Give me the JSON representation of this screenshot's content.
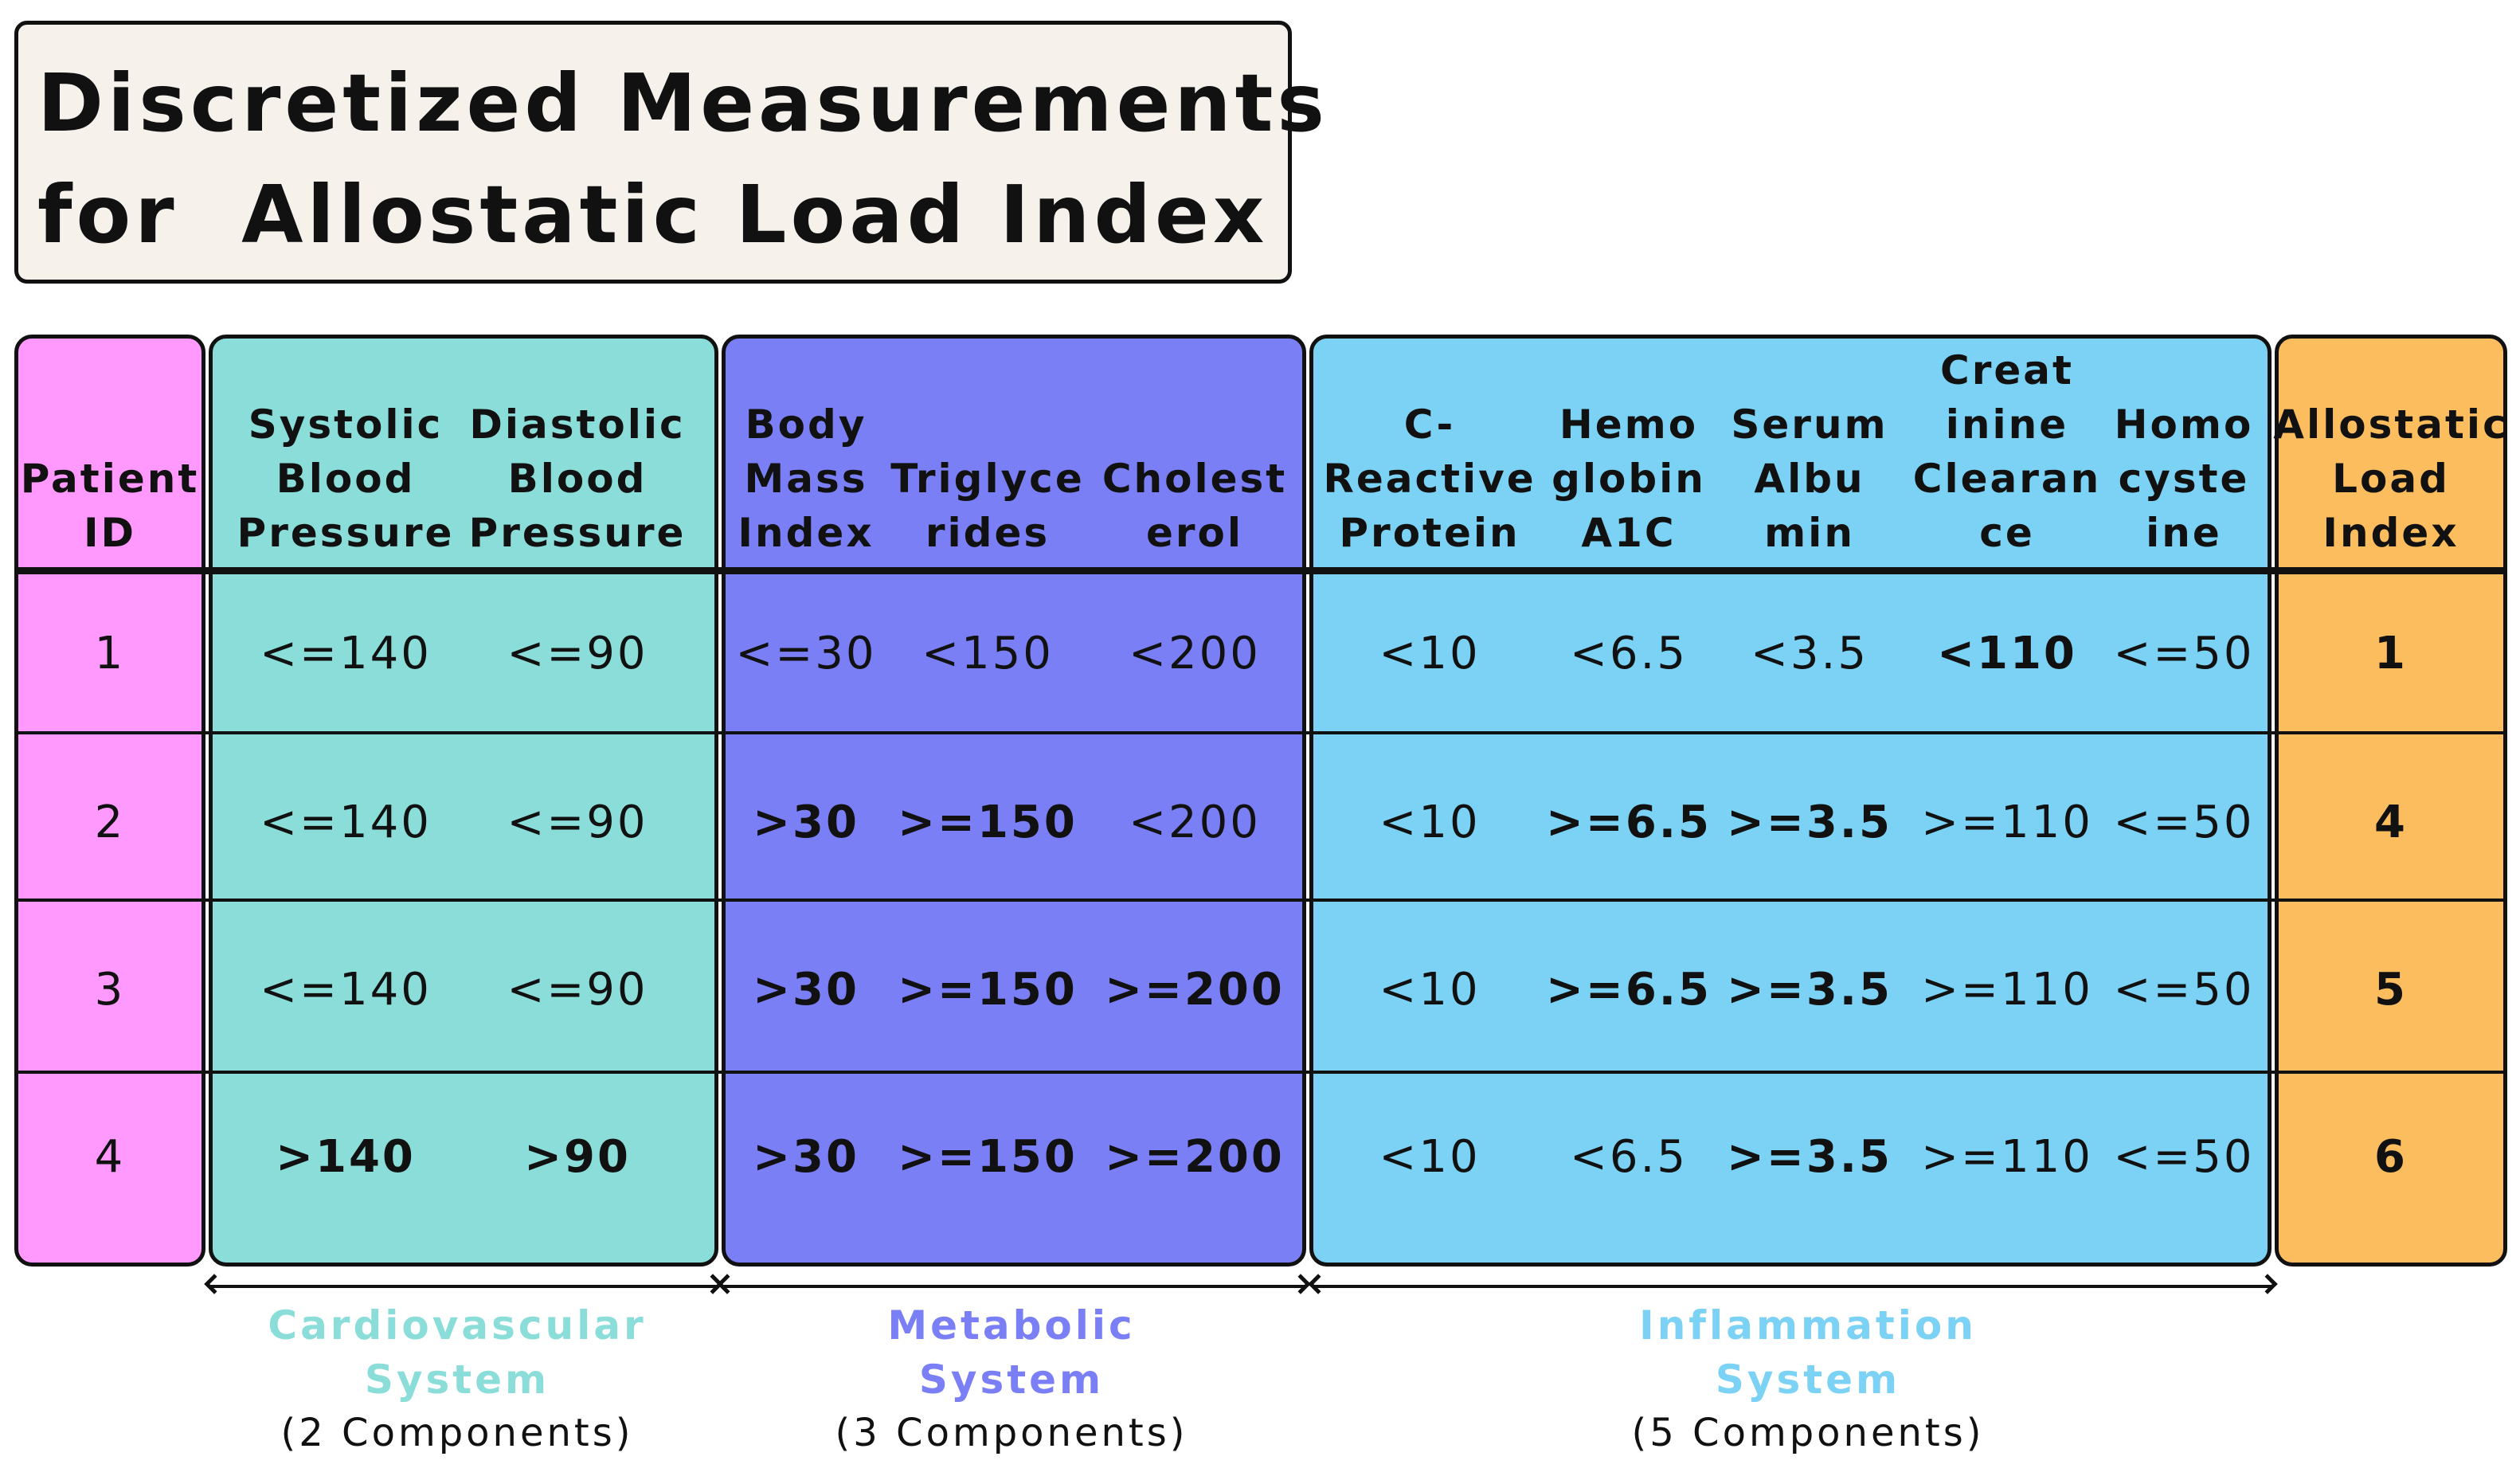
{
  "title": {
    "line1": "Discretized Measurements",
    "line2": "for  Allostatic Load Index"
  },
  "colors": {
    "patient": "#ff99fe",
    "cardiovascular": "#8addd8",
    "metabolic": "#7b7ff5",
    "inflammation": "#7bd2f4",
    "index": "#fbbd5e",
    "cardio_text": "#8addd8",
    "metabolic_text": "#7b7ff5",
    "inflammation_text": "#7bd2f4"
  },
  "columns": [
    {
      "lines": [
        "Patient",
        "ID"
      ]
    },
    {
      "lines": [
        "Systolic",
        "Blood",
        "Pressure"
      ]
    },
    {
      "lines": [
        "Diastolic",
        "Blood",
        "Pressure"
      ]
    },
    {
      "lines": [
        "Body",
        "Mass",
        "Index"
      ]
    },
    {
      "lines": [
        "Triglyce",
        "rides"
      ]
    },
    {
      "lines": [
        "Cholest",
        "erol"
      ]
    },
    {
      "lines": [
        "C-",
        "Reactive",
        "Protein"
      ]
    },
    {
      "lines": [
        "Hemo",
        "globin",
        "A1C"
      ]
    },
    {
      "lines": [
        "Serum",
        "Albu",
        "min"
      ]
    },
    {
      "lines": [
        "Creat",
        "inine",
        "Clearan",
        "ce"
      ]
    },
    {
      "lines": [
        "Homo",
        "cyste",
        "ine"
      ]
    },
    {
      "lines": [
        "Allostatic",
        "Load",
        "Index"
      ]
    }
  ],
  "rows": [
    {
      "cells": [
        {
          "v": "1",
          "b": false
        },
        {
          "v": "<=140",
          "b": false
        },
        {
          "v": "<=90",
          "b": false
        },
        {
          "v": "<=30",
          "b": false
        },
        {
          "v": "<150",
          "b": false
        },
        {
          "v": "<200",
          "b": false
        },
        {
          "v": "<10",
          "b": false
        },
        {
          "v": "<6.5",
          "b": false
        },
        {
          "v": "<3.5",
          "b": false
        },
        {
          "v": "<110",
          "b": true
        },
        {
          "v": "<=50",
          "b": false
        },
        {
          "v": "1",
          "b": true
        }
      ]
    },
    {
      "cells": [
        {
          "v": "2",
          "b": false
        },
        {
          "v": "<=140",
          "b": false
        },
        {
          "v": "<=90",
          "b": false
        },
        {
          "v": ">30",
          "b": true
        },
        {
          "v": ">=150",
          "b": true
        },
        {
          "v": "<200",
          "b": false
        },
        {
          "v": "<10",
          "b": false
        },
        {
          "v": ">=6.5",
          "b": true
        },
        {
          "v": ">=3.5",
          "b": true
        },
        {
          "v": ">=110",
          "b": false
        },
        {
          "v": "<=50",
          "b": false
        },
        {
          "v": "4",
          "b": true
        }
      ]
    },
    {
      "cells": [
        {
          "v": "3",
          "b": false
        },
        {
          "v": "<=140",
          "b": false
        },
        {
          "v": "<=90",
          "b": false
        },
        {
          "v": ">30",
          "b": true
        },
        {
          "v": ">=150",
          "b": true
        },
        {
          "v": ">=200",
          "b": true
        },
        {
          "v": "<10",
          "b": false
        },
        {
          "v": ">=6.5",
          "b": true
        },
        {
          "v": ">=3.5",
          "b": true
        },
        {
          "v": ">=110",
          "b": false
        },
        {
          "v": "<=50",
          "b": false
        },
        {
          "v": "5",
          "b": true
        }
      ]
    },
    {
      "cells": [
        {
          "v": "4",
          "b": false
        },
        {
          "v": ">140",
          "b": true
        },
        {
          "v": ">90",
          "b": true
        },
        {
          "v": ">30",
          "b": true
        },
        {
          "v": ">=150",
          "b": true
        },
        {
          "v": ">=200",
          "b": true
        },
        {
          "v": "<10",
          "b": false
        },
        {
          "v": "<6.5",
          "b": false
        },
        {
          "v": ">=3.5",
          "b": true
        },
        {
          "v": ">=110",
          "b": false
        },
        {
          "v": "<=50",
          "b": false
        },
        {
          "v": "6",
          "b": true
        }
      ]
    }
  ],
  "systems": [
    {
      "name_lines": [
        "Cardiovascular",
        "System"
      ],
      "components": "(2 Components)"
    },
    {
      "name_lines": [
        "Metabolic",
        "System"
      ],
      "components": "(3 Components)"
    },
    {
      "name_lines": [
        "Inflammation",
        "System"
      ],
      "components": "(5 Components)"
    }
  ]
}
